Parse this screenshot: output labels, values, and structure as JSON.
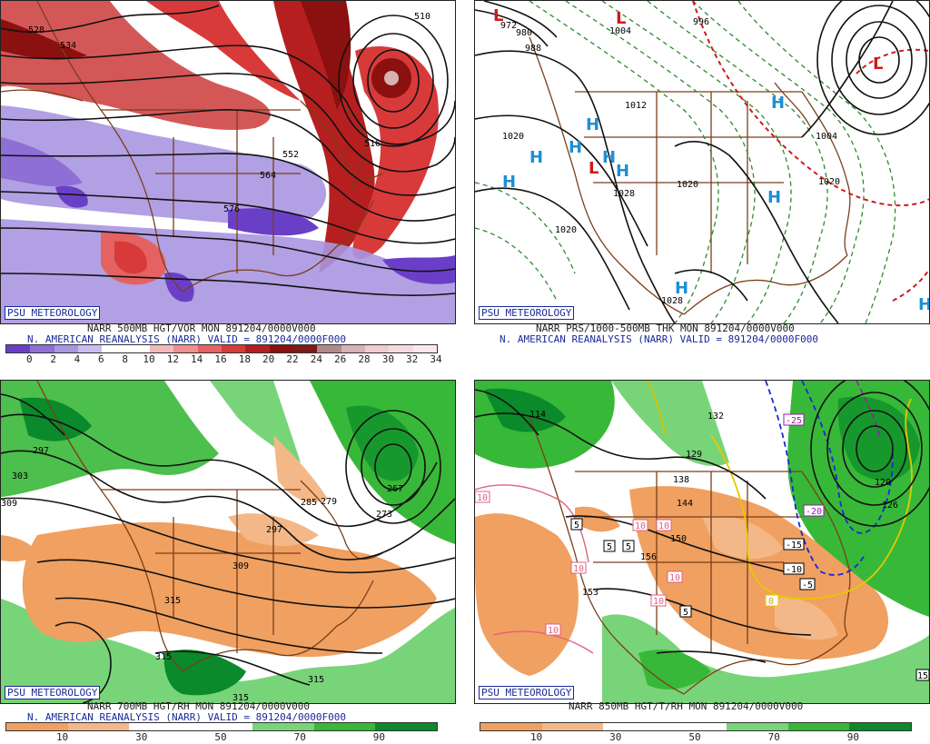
{
  "panels": [
    {
      "psu": "PSU METEOROLOGY",
      "line1": "NARR 500MB HGT/VOR MON 891204/0000V000",
      "line2": "N. AMERICAN REANALYSIS (NARR) VALID = 891204/0000F000",
      "contour_labels": [
        "528",
        "516",
        "552",
        "564",
        "576",
        "510",
        "534"
      ],
      "colorbar": {
        "colors": [
          "#6a3fc8",
          "#8d6fd6",
          "#a996e0",
          "#cbbdf0",
          "#ffffff",
          "#ffffff",
          "#f3b9b9",
          "#ee8e8e",
          "#e46262",
          "#d83a3a",
          "#b51f1f",
          "#8b1010",
          "#7d1a1a",
          "#b08a8a",
          "#d6b2b2",
          "#f0cccc",
          "#f6d9e0",
          "#fbe8ee"
        ],
        "ticks": [
          "0",
          "2",
          "4",
          "6",
          "8",
          "10",
          "12",
          "14",
          "16",
          "18",
          "20",
          "22",
          "24",
          "26",
          "28",
          "30",
          "32",
          "34"
        ]
      }
    },
    {
      "psu": "PSU METEOROLOGY",
      "line1": "NARR PRS/1000-500MB THK MON 891204/0000V000",
      "line2": "N. AMERICAN REANALYSIS (NARR) VALID = 891204/0000F000",
      "contour_labels": [
        "1020",
        "1028",
        "1020",
        "1020",
        "1028",
        "1012",
        "1004",
        "996",
        "988",
        "980",
        "1004",
        "1020",
        "972"
      ],
      "highs": [
        "H",
        "H",
        "H",
        "H",
        "H",
        "H",
        "H",
        "H",
        "H",
        "H"
      ],
      "lows": [
        "L",
        "L",
        "L",
        "L"
      ]
    },
    {
      "psu": "PSU METEOROLOGY",
      "line1": "NARR 700MB HGT/RH MON 891204/0000V000",
      "line2": "N. AMERICAN REANALYSIS (NARR) VALID = 891204/0000F000",
      "contour_labels": [
        "297",
        "303",
        "309",
        "315",
        "315",
        "315",
        "309",
        "297",
        "285",
        "279",
        "273",
        "267",
        "315"
      ],
      "colorbar": {
        "colors": [
          "#f0a060",
          "#f4b888",
          "#ffffff",
          "#ffffff",
          "#78d478",
          "#38b838",
          "#0a8a2a"
        ],
        "ticks": [
          "10",
          "30",
          "50",
          "70",
          "90"
        ]
      }
    },
    {
      "psu": "PSU METEOROLOGY",
      "line1": "NARR 850MB HGT/T/RH MON 891204/0000V000",
      "line2": "",
      "contour_labels": [
        "138",
        "144",
        "150",
        "156",
        "153",
        "126",
        "120",
        "114",
        "132",
        "129"
      ],
      "temp_labels": [
        "0",
        "5",
        "5",
        "5",
        "5",
        "10",
        "10",
        "10",
        "10",
        "10",
        "10",
        "10",
        "-5",
        "-10",
        "-15",
        "-20",
        "-25",
        "15"
      ],
      "colorbar": {
        "colors": [
          "#f0a060",
          "#f4b888",
          "#ffffff",
          "#ffffff",
          "#78d478",
          "#38b838",
          "#0a8a2a"
        ],
        "ticks": [
          "10",
          "30",
          "50",
          "70",
          "90"
        ]
      }
    }
  ]
}
